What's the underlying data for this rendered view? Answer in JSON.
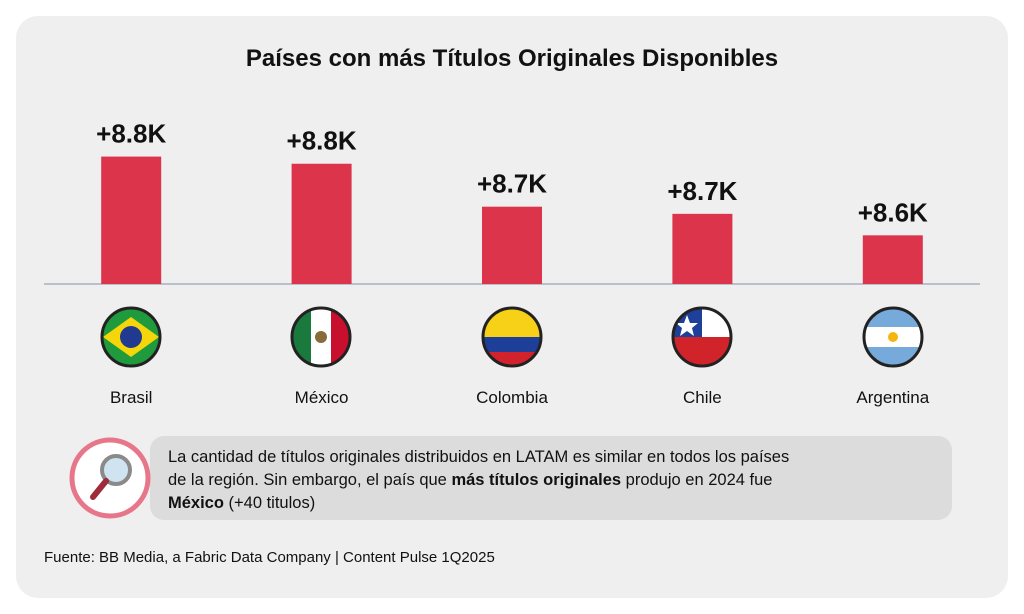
{
  "chart_data": {
    "type": "bar",
    "title": "Países con más Títulos Originales Disponibles",
    "categories": [
      "Brasil",
      "México",
      "Colombia",
      "Chile",
      "Argentina"
    ],
    "values": [
      8.84,
      8.82,
      8.7,
      8.68,
      8.62
    ],
    "value_labels": [
      "+8.8K",
      "+8.8K",
      "+8.7K",
      "+8.7K",
      "+8.6K"
    ],
    "color": "#dc344a",
    "ylim": [
      8.484,
      8.85
    ],
    "note": [
      [
        {
          "text": "La cantidad de títulos originales distribuidos en LATAM es similar en todos los países",
          "bold": false
        }
      ],
      [
        {
          "text": "de la región. Sin embargo, el país que ",
          "bold": false
        },
        {
          "text": "más títulos originales",
          "bold": true
        },
        {
          "text": " produjo en 2024 fue",
          "bold": false
        }
      ],
      [
        {
          "text": "México",
          "bold": true
        },
        {
          "text": " (+40 titulos)",
          "bold": false
        }
      ]
    ],
    "source": "Fuente: BB Media, a Fabric Data Company | Content Pulse 1Q2025"
  }
}
